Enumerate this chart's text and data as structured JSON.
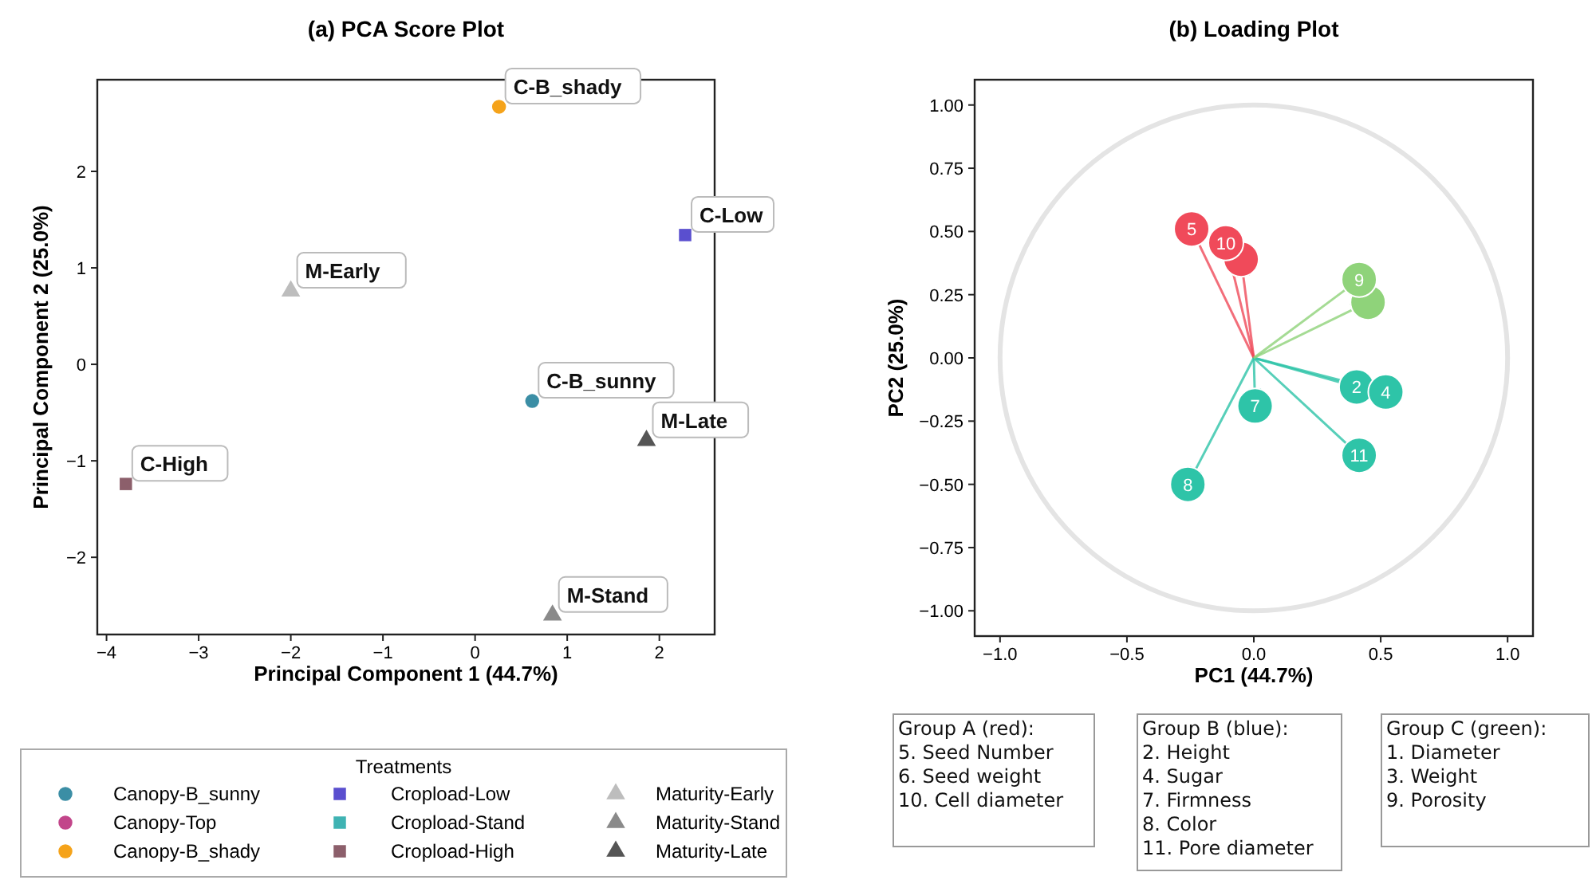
{
  "chart_data": [
    {
      "type": "scatter",
      "title": "(a) PCA Score Plot",
      "xlabel": "Principal Component 1 (44.7%)",
      "ylabel": "Principal Component 2 (25.0%)",
      "legend_title": "Treatments",
      "legend": "bottom",
      "xlim": [
        -4.1,
        2.6
      ],
      "ylim": [
        -2.8,
        2.95
      ],
      "xticks": [
        {
          "value": -4,
          "label": "−4"
        },
        {
          "value": -3,
          "label": "−3"
        },
        {
          "value": -2,
          "label": "−2"
        },
        {
          "value": -1,
          "label": "−1"
        },
        0,
        1,
        2
      ],
      "yticks": [
        {
          "value": -2,
          "label": "−2"
        },
        {
          "value": -1,
          "label": "−1"
        },
        0,
        1,
        2
      ],
      "series": [
        {
          "name": "Canopy-B_sunny",
          "color": "#3b8ea5",
          "marker": "circle",
          "x": [
            0.62
          ],
          "values": [
            -0.38
          ]
        },
        {
          "name": "Canopy-Top",
          "color": "#c2458a",
          "marker": "circle"
        },
        {
          "name": "Canopy-B_shady",
          "color": "#f5a31a",
          "marker": "circle",
          "x": [
            0.26
          ],
          "values": [
            2.67
          ]
        },
        {
          "name": "Cropload-Low",
          "color": "#5a4fcf",
          "marker": "square",
          "x": [
            2.28
          ],
          "values": [
            1.34
          ]
        },
        {
          "name": "Cropload-Stand",
          "color": "#3fb3b3",
          "marker": "square"
        },
        {
          "name": "Cropload-High",
          "color": "#8c5f6b",
          "marker": "square",
          "x": [
            -3.79
          ],
          "values": [
            -1.24
          ]
        },
        {
          "name": "Maturity-Early",
          "color": "#bdbdbd",
          "marker": "triangle",
          "x": [
            -2.0
          ],
          "values": [
            0.76
          ]
        },
        {
          "name": "Maturity-Stand",
          "color": "#8a8a8a",
          "marker": "triangle",
          "x": [
            0.84
          ],
          "values": [
            -2.6
          ]
        },
        {
          "name": "Maturity-Late",
          "color": "#555555",
          "marker": "triangle",
          "x": [
            1.86
          ],
          "values": [
            -0.79
          ]
        }
      ],
      "annotations": [
        {
          "text": "C-B_shady",
          "x": 0.26,
          "y": 2.67
        },
        {
          "text": "C-Low",
          "x": 2.28,
          "y": 1.34
        },
        {
          "text": "M-Early",
          "x": -2.0,
          "y": 0.76
        },
        {
          "text": "C-B_sunny",
          "x": 0.62,
          "y": -0.38
        },
        {
          "text": "M-Late",
          "x": 1.86,
          "y": -0.79
        },
        {
          "text": "C-High",
          "x": -3.79,
          "y": -1.24
        },
        {
          "text": "M-Stand",
          "x": 0.84,
          "y": -2.6
        }
      ]
    },
    {
      "type": "scatter",
      "title": "(b) Loading Plot",
      "xlabel": "PC1 (44.7%)",
      "ylabel": "PC2 (25.0%)",
      "xlim": [
        -1.1,
        1.1
      ],
      "ylim": [
        -1.1,
        1.1
      ],
      "xticks": [
        {
          "value": -1,
          "label": "−1.0"
        },
        {
          "value": -0.5,
          "label": "−0.5"
        },
        {
          "value": 0,
          "label": "0.0"
        },
        {
          "value": 0.5,
          "label": "0.5"
        },
        {
          "value": 1,
          "label": "1.0"
        }
      ],
      "yticks": [
        {
          "value": -1,
          "label": "−1.00"
        },
        {
          "value": -0.75,
          "label": "−0.75"
        },
        {
          "value": -0.5,
          "label": "−0.50"
        },
        {
          "value": -0.25,
          "label": "−0.25"
        },
        {
          "value": 0,
          "label": "0.00"
        },
        {
          "value": 0.25,
          "label": "0.25"
        },
        {
          "value": 0.5,
          "label": "0.50"
        },
        {
          "value": 0.75,
          "label": "0.75"
        },
        {
          "value": 1,
          "label": "1.00"
        }
      ],
      "series": [
        {
          "color": "#f04a5a",
          "marker": "circle",
          "x": [
            -0.245,
            -0.05,
            -0.11
          ],
          "values": [
            0.51,
            0.39,
            0.455
          ]
        },
        {
          "color": "#2ec4a8",
          "marker": "circle",
          "x": [
            0.405,
            0.52,
            0.005,
            -0.26,
            0.415
          ],
          "values": [
            -0.115,
            -0.135,
            -0.19,
            -0.5,
            -0.385
          ]
        },
        {
          "color": "#8fd37a",
          "marker": "circle",
          "x": [
            0.45,
            0.415
          ],
          "values": [
            0.22,
            0.31
          ]
        }
      ],
      "annotations": [
        {
          "text": "5",
          "x": -0.245,
          "y": 0.51
        },
        {
          "text": "10",
          "x": -0.11,
          "y": 0.455
        },
        {
          "text": "2",
          "x": 0.405,
          "y": -0.115
        },
        {
          "text": "4",
          "x": 0.52,
          "y": -0.135
        },
        {
          "text": "7",
          "x": 0.005,
          "y": -0.19
        },
        {
          "text": "8",
          "x": -0.26,
          "y": -0.5
        },
        {
          "text": "11",
          "x": 0.415,
          "y": -0.385
        },
        {
          "text": "9",
          "x": 0.415,
          "y": 0.31
        },
        "Group A (red):\n5. Seed Number\n6. Seed weight\n10. Cell diameter",
        "Group B (blue):\n2. Height\n4. Sugar\n7. Firmness\n8. Color\n11. Pore diameter",
        "Group C (green):\n1. Diameter\n3. Weight\n9. Porosity"
      ]
    }
  ]
}
